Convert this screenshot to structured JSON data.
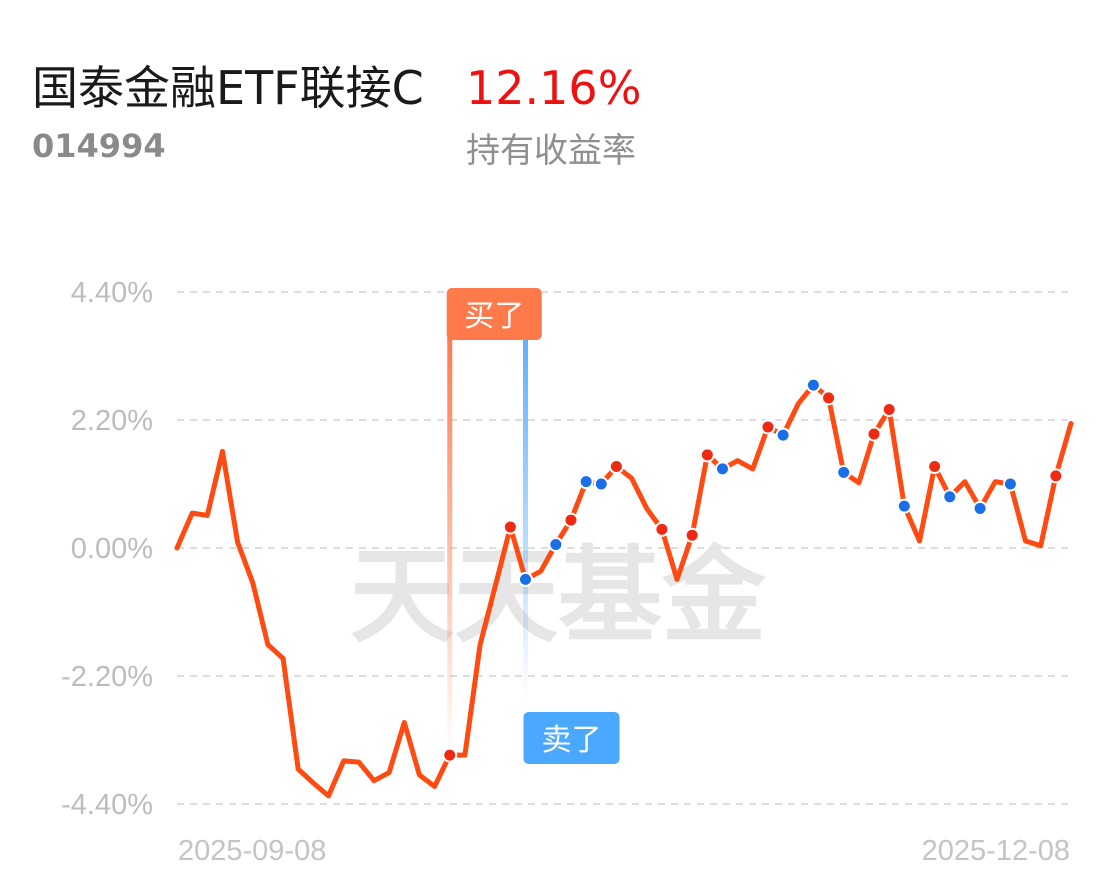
{
  "header": {
    "fund_name": "国泰金融ETF联接C",
    "fund_code": "014994",
    "return_value": "12.16%",
    "return_label": "持有收益率"
  },
  "watermark": "天天基金",
  "colors": {
    "line": "#ff4a12",
    "buy_marker": "#ee2a12",
    "sell_marker": "#1a6ee6",
    "buy_tag": "#ff7a4a",
    "sell_tag": "#4aa9ff",
    "grid": "#dddddd",
    "up_text": "#ee1111"
  },
  "chart_data": {
    "type": "line",
    "y_ticks": [
      "4.40%",
      "2.20%",
      "0.00%",
      "-2.20%",
      "-4.40%"
    ],
    "ylim": [
      -4.4,
      4.4
    ],
    "x_labels": [
      "2025-09-08",
      "2025-12-08"
    ],
    "grid": true,
    "values": [
      0.0,
      0.6,
      0.56,
      1.66,
      0.1,
      -0.6,
      -1.66,
      -1.9,
      -3.8,
      -4.04,
      -4.26,
      -3.66,
      -3.68,
      -4.0,
      -3.86,
      -3.0,
      -3.9,
      -4.1,
      -3.56,
      -3.56,
      -1.66,
      -0.66,
      0.36,
      -0.54,
      -0.4,
      0.06,
      0.48,
      1.14,
      1.1,
      1.4,
      1.2,
      0.68,
      0.32,
      -0.54,
      0.22,
      1.6,
      1.36,
      1.5,
      1.36,
      2.08,
      1.94,
      2.48,
      2.8,
      2.58,
      1.3,
      1.12,
      1.96,
      2.38,
      0.72,
      0.12,
      1.4,
      0.88,
      1.14,
      0.68,
      1.14,
      1.1,
      0.12,
      0.04,
      1.24,
      2.14
    ],
    "buy_points": [
      18,
      22,
      26,
      29,
      32,
      34,
      35,
      39,
      43,
      46,
      47,
      50,
      58
    ],
    "sell_points": [
      23,
      25,
      27,
      28,
      36,
      40,
      42,
      44,
      48,
      51,
      53,
      55
    ],
    "annotations": [
      {
        "label": "买了",
        "index": 18,
        "type": "buy"
      },
      {
        "label": "卖了",
        "index": 23,
        "type": "sell"
      }
    ]
  }
}
